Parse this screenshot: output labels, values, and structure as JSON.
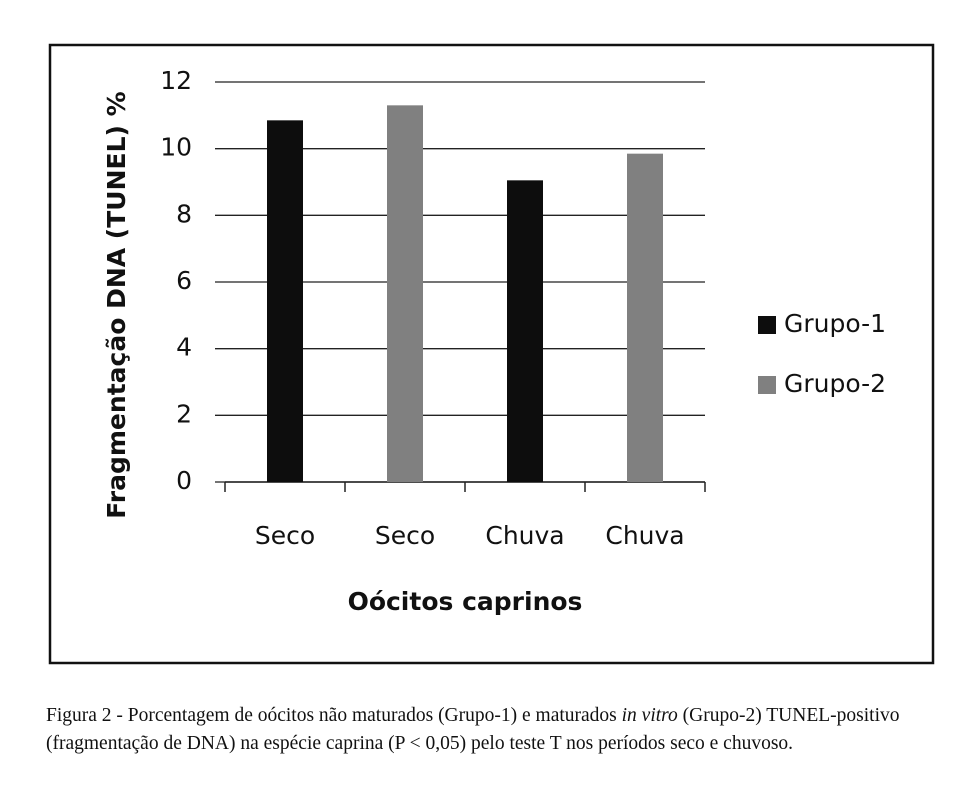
{
  "chart_data": {
    "type": "bar",
    "ylabel": "Fragmentação DNA (TUNEL) %",
    "xlabel": "Oócitos caprinos",
    "categories": [
      "Seco",
      "Seco",
      "Chuva",
      "Chuva"
    ],
    "series": [
      {
        "name": "Grupo-1",
        "color": "#0d0d0d",
        "values": [
          10.85,
          null,
          9.05,
          null
        ]
      },
      {
        "name": "Grupo-2",
        "color": "#808080",
        "values": [
          null,
          11.3,
          null,
          9.85
        ]
      }
    ],
    "ylim": [
      0,
      12
    ],
    "yticks": [
      0,
      2,
      4,
      6,
      8,
      10,
      12
    ],
    "grid": true,
    "legend": "right",
    "caption": [
      "Figura 2 - Porcentagem de oócitos não maturados (Grupo-1) e maturados ",
      "in vitro",
      " (Grupo-2) TUNEL-positivo (fragmentação de DNA) na espécie caprina (P < 0,05) pelo teste T nos períodos seco e chuvoso."
    ]
  }
}
